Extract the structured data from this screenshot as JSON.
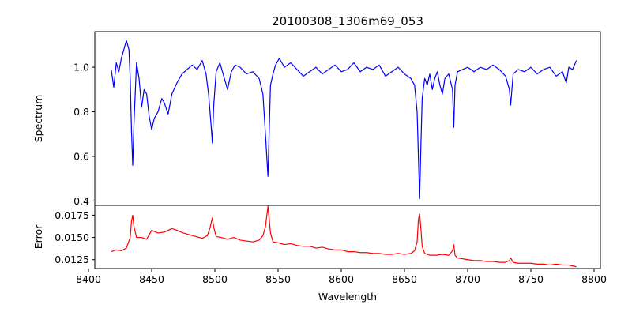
{
  "chart_data": [
    {
      "type": "line",
      "title": "20100308_1306m69_053",
      "ylabel": "Spectrum",
      "xlim": [
        8405,
        8805
      ],
      "ylim": [
        0.38,
        1.16
      ],
      "yticks": [
        0.4,
        0.6,
        0.8,
        1.0
      ],
      "ytick_labels": [
        "0.4",
        "0.6",
        "0.8",
        "1.0"
      ],
      "color": "#0000ff",
      "series": [
        {
          "x": [
            8418,
            8420,
            8422,
            8424,
            8426,
            8428,
            8430,
            8432,
            8433,
            8434,
            8435,
            8436,
            8438,
            8440,
            8442,
            8444,
            8446,
            8448,
            8450,
            8452,
            8455,
            8458,
            8460,
            8463,
            8466,
            8470,
            8474,
            8478,
            8482,
            8486,
            8490,
            8493,
            8495,
            8497,
            8498,
            8499,
            8501,
            8504,
            8507,
            8510,
            8513,
            8516,
            8520,
            8525,
            8530,
            8535,
            8538,
            8540,
            8542,
            8543,
            8544,
            8546,
            8548,
            8551,
            8555,
            8560,
            8565,
            8570,
            8575,
            8580,
            8585,
            8590,
            8595,
            8600,
            8605,
            8610,
            8615,
            8620,
            8625,
            8630,
            8635,
            8640,
            8645,
            8650,
            8655,
            8658,
            8660,
            8662,
            8663,
            8664,
            8666,
            8668,
            8670,
            8672,
            8674,
            8676,
            8678,
            8680,
            8682,
            8685,
            8688,
            8689,
            8690,
            8692,
            8696,
            8700,
            8705,
            8710,
            8715,
            8720,
            8725,
            8730,
            8733,
            8734,
            8736,
            8740,
            8745,
            8750,
            8755,
            8760,
            8765,
            8770,
            8775,
            8778,
            8780,
            8783,
            8786
          ],
          "y": [
            0.99,
            0.91,
            1.02,
            0.98,
            1.04,
            1.08,
            1.12,
            1.08,
            0.95,
            0.72,
            0.56,
            0.75,
            1.02,
            0.95,
            0.82,
            0.9,
            0.88,
            0.78,
            0.72,
            0.77,
            0.8,
            0.86,
            0.84,
            0.79,
            0.88,
            0.93,
            0.97,
            0.99,
            1.01,
            0.99,
            1.03,
            0.97,
            0.88,
            0.74,
            0.66,
            0.82,
            0.98,
            1.02,
            0.96,
            0.9,
            0.98,
            1.01,
            1.0,
            0.97,
            0.98,
            0.95,
            0.88,
            0.7,
            0.51,
            0.72,
            0.92,
            0.97,
            1.01,
            1.04,
            1.0,
            1.02,
            0.99,
            0.96,
            0.98,
            1.0,
            0.97,
            0.99,
            1.01,
            0.98,
            0.99,
            1.02,
            0.98,
            1.0,
            0.99,
            1.01,
            0.96,
            0.98,
            1.0,
            0.97,
            0.95,
            0.92,
            0.8,
            0.41,
            0.65,
            0.86,
            0.95,
            0.92,
            0.97,
            0.9,
            0.95,
            0.98,
            0.92,
            0.88,
            0.95,
            0.97,
            0.9,
            0.73,
            0.92,
            0.98,
            0.99,
            1.0,
            0.98,
            1.0,
            0.99,
            1.01,
            0.99,
            0.96,
            0.9,
            0.83,
            0.97,
            0.99,
            0.98,
            1.0,
            0.97,
            0.99,
            1.0,
            0.96,
            0.98,
            0.93,
            1.0,
            0.99,
            1.03
          ]
        }
      ]
    },
    {
      "type": "line",
      "xlabel": "Wavelength",
      "ylabel": "Error",
      "xlim": [
        8405,
        8805
      ],
      "ylim": [
        0.0115,
        0.0186
      ],
      "xticks": [
        8400,
        8450,
        8500,
        8550,
        8600,
        8650,
        8700,
        8750,
        8800
      ],
      "xtick_labels": [
        "8400",
        "8450",
        "8500",
        "8550",
        "8600",
        "8650",
        "8700",
        "8750",
        "8800"
      ],
      "yticks": [
        0.0125,
        0.015,
        0.0175
      ],
      "ytick_labels": [
        "0.0125",
        "0.0150",
        "0.0175"
      ],
      "color": "#ff0000",
      "series": [
        {
          "x": [
            8418,
            8422,
            8426,
            8430,
            8433,
            8434,
            8435,
            8436,
            8438,
            8442,
            8446,
            8450,
            8455,
            8460,
            8466,
            8470,
            8475,
            8480,
            8485,
            8490,
            8494,
            8496,
            8498,
            8499,
            8501,
            8505,
            8510,
            8515,
            8520,
            8525,
            8530,
            8535,
            8538,
            8540,
            8542,
            8543,
            8544,
            8546,
            8550,
            8555,
            8560,
            8565,
            8570,
            8575,
            8580,
            8585,
            8590,
            8595,
            8600,
            8605,
            8610,
            8615,
            8620,
            8625,
            8630,
            8635,
            8640,
            8645,
            8650,
            8655,
            8658,
            8660,
            8661,
            8662,
            8663,
            8664,
            8666,
            8670,
            8675,
            8680,
            8685,
            8688,
            8689,
            8690,
            8692,
            8696,
            8700,
            8705,
            8710,
            8715,
            8720,
            8725,
            8730,
            8733,
            8734,
            8736,
            8740,
            8745,
            8750,
            8755,
            8760,
            8765,
            8770,
            8775,
            8780,
            8783,
            8786
          ],
          "y": [
            0.0134,
            0.0136,
            0.0135,
            0.0138,
            0.015,
            0.0168,
            0.0175,
            0.0162,
            0.015,
            0.015,
            0.0148,
            0.0158,
            0.0155,
            0.0156,
            0.016,
            0.0158,
            0.0155,
            0.0153,
            0.0151,
            0.0149,
            0.0152,
            0.016,
            0.0172,
            0.0162,
            0.0151,
            0.015,
            0.0148,
            0.015,
            0.0147,
            0.0146,
            0.0145,
            0.0147,
            0.0152,
            0.0162,
            0.0185,
            0.017,
            0.0155,
            0.0145,
            0.0144,
            0.0142,
            0.0143,
            0.0141,
            0.014,
            0.014,
            0.0138,
            0.0139,
            0.0137,
            0.0136,
            0.0136,
            0.0134,
            0.0134,
            0.0133,
            0.0133,
            0.0132,
            0.0132,
            0.0131,
            0.0131,
            0.0132,
            0.0131,
            0.0132,
            0.0135,
            0.0145,
            0.017,
            0.0176,
            0.016,
            0.014,
            0.0132,
            0.013,
            0.013,
            0.0131,
            0.013,
            0.0135,
            0.0142,
            0.013,
            0.0127,
            0.0126,
            0.0125,
            0.0124,
            0.0124,
            0.0123,
            0.0123,
            0.0122,
            0.0122,
            0.0124,
            0.0127,
            0.0122,
            0.0121,
            0.0121,
            0.0121,
            0.012,
            0.012,
            0.0119,
            0.012,
            0.0119,
            0.0119,
            0.0118,
            0.0117
          ]
        }
      ]
    }
  ]
}
